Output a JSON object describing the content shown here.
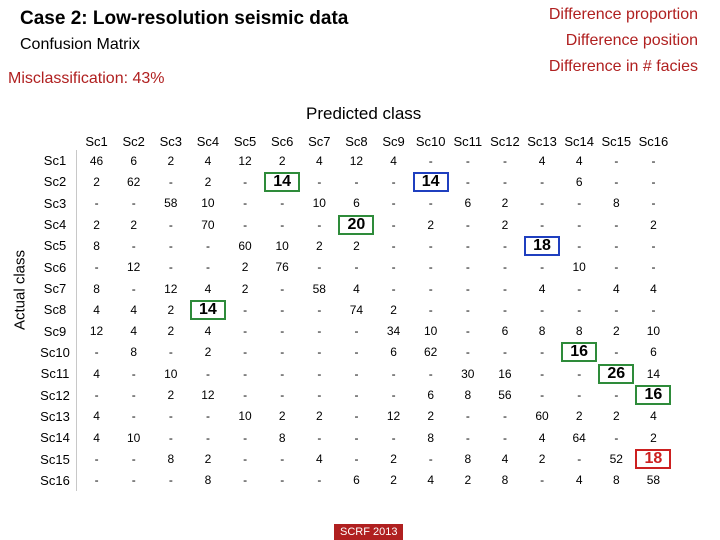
{
  "title": "Case 2: Low-resolution seismic data",
  "subtitle": "Confusion Matrix",
  "misclassification": "Misclassification: 43%",
  "notes": [
    "Difference proportion",
    "Difference position",
    "Difference in # facies"
  ],
  "predicted_label": "Predicted class",
  "actual_label": "Actual class",
  "footer": "SCRF 2013",
  "columns": [
    "Sc1",
    "Sc2",
    "Sc3",
    "Sc4",
    "Sc5",
    "Sc6",
    "Sc7",
    "Sc8",
    "Sc9",
    "Sc10",
    "Sc11",
    "Sc12",
    "Sc13",
    "Sc14",
    "Sc15",
    "Sc16"
  ],
  "rows": [
    "Sc1",
    "Sc2",
    "Sc3",
    "Sc4",
    "Sc5",
    "Sc6",
    "Sc7",
    "Sc8",
    "Sc9",
    "Sc10",
    "Sc11",
    "Sc12",
    "Sc13",
    "Sc14",
    "Sc15",
    "Sc16"
  ],
  "matrix": [
    [
      "46",
      "6",
      "2",
      "4",
      "12",
      "2",
      "4",
      "12",
      "4",
      "-",
      "-",
      "-",
      "4",
      "4",
      "-",
      "-"
    ],
    [
      "2",
      "62",
      "-",
      "2",
      "-",
      "14",
      "-",
      "-",
      "-",
      "14",
      "-",
      "-",
      "-",
      "6",
      "-",
      "-"
    ],
    [
      "-",
      "-",
      "58",
      "10",
      "-",
      "-",
      "10",
      "6",
      "-",
      "-",
      "6",
      "2",
      "-",
      "-",
      "8",
      "-"
    ],
    [
      "2",
      "2",
      "-",
      "70",
      "-",
      "-",
      "-",
      "20",
      "-",
      "2",
      "-",
      "2",
      "-",
      "-",
      "-",
      "2"
    ],
    [
      "8",
      "-",
      "-",
      "-",
      "60",
      "10",
      "2",
      "2",
      "-",
      "-",
      "-",
      "-",
      "18",
      "-",
      "-",
      "-"
    ],
    [
      "-",
      "12",
      "-",
      "-",
      "2",
      "76",
      "-",
      "-",
      "-",
      "-",
      "-",
      "-",
      "-",
      "10",
      "-",
      "-"
    ],
    [
      "8",
      "-",
      "12",
      "4",
      "2",
      "-",
      "58",
      "4",
      "-",
      "-",
      "-",
      "-",
      "4",
      "-",
      "4",
      "4"
    ],
    [
      "4",
      "4",
      "2",
      "14",
      "-",
      "-",
      "-",
      "74",
      "2",
      "-",
      "-",
      "-",
      "-",
      "-",
      "-",
      "-"
    ],
    [
      "12",
      "4",
      "2",
      "4",
      "-",
      "-",
      "-",
      "-",
      "34",
      "10",
      "-",
      "6",
      "8",
      "8",
      "2",
      "10"
    ],
    [
      "-",
      "8",
      "-",
      "2",
      "-",
      "-",
      "-",
      "-",
      "6",
      "62",
      "-",
      "-",
      "-",
      "16",
      "-",
      "6"
    ],
    [
      "4",
      "-",
      "10",
      "-",
      "-",
      "-",
      "-",
      "-",
      "-",
      "-",
      "30",
      "16",
      "-",
      "-",
      "26",
      "14"
    ],
    [
      "-",
      "-",
      "2",
      "12",
      "-",
      "-",
      "-",
      "-",
      "-",
      "6",
      "8",
      "56",
      "-",
      "-",
      "-",
      "16"
    ],
    [
      "4",
      "-",
      "-",
      "-",
      "10",
      "2",
      "2",
      "-",
      "12",
      "2",
      "-",
      "-",
      "60",
      "2",
      "2",
      "4"
    ],
    [
      "4",
      "10",
      "-",
      "-",
      "-",
      "8",
      "-",
      "-",
      "-",
      "8",
      "-",
      "-",
      "4",
      "64",
      "-",
      "2"
    ],
    [
      "-",
      "-",
      "8",
      "2",
      "-",
      "-",
      "4",
      "-",
      "2",
      "-",
      "8",
      "4",
      "2",
      "-",
      "52",
      "18"
    ],
    [
      "-",
      "-",
      "-",
      "8",
      "-",
      "-",
      "-",
      "6",
      "2",
      "4",
      "2",
      "8",
      "-",
      "4",
      "8",
      "58"
    ]
  ],
  "highlights": [
    {
      "row": 1,
      "col": 5,
      "color": "green"
    },
    {
      "row": 1,
      "col": 9,
      "color": "blue"
    },
    {
      "row": 3,
      "col": 7,
      "color": "green"
    },
    {
      "row": 4,
      "col": 12,
      "color": "blue"
    },
    {
      "row": 7,
      "col": 3,
      "color": "green"
    },
    {
      "row": 9,
      "col": 13,
      "color": "green"
    },
    {
      "row": 10,
      "col": 14,
      "color": "green"
    },
    {
      "row": 11,
      "col": 15,
      "color": "green"
    },
    {
      "row": 14,
      "col": 15,
      "color": "red"
    }
  ]
}
